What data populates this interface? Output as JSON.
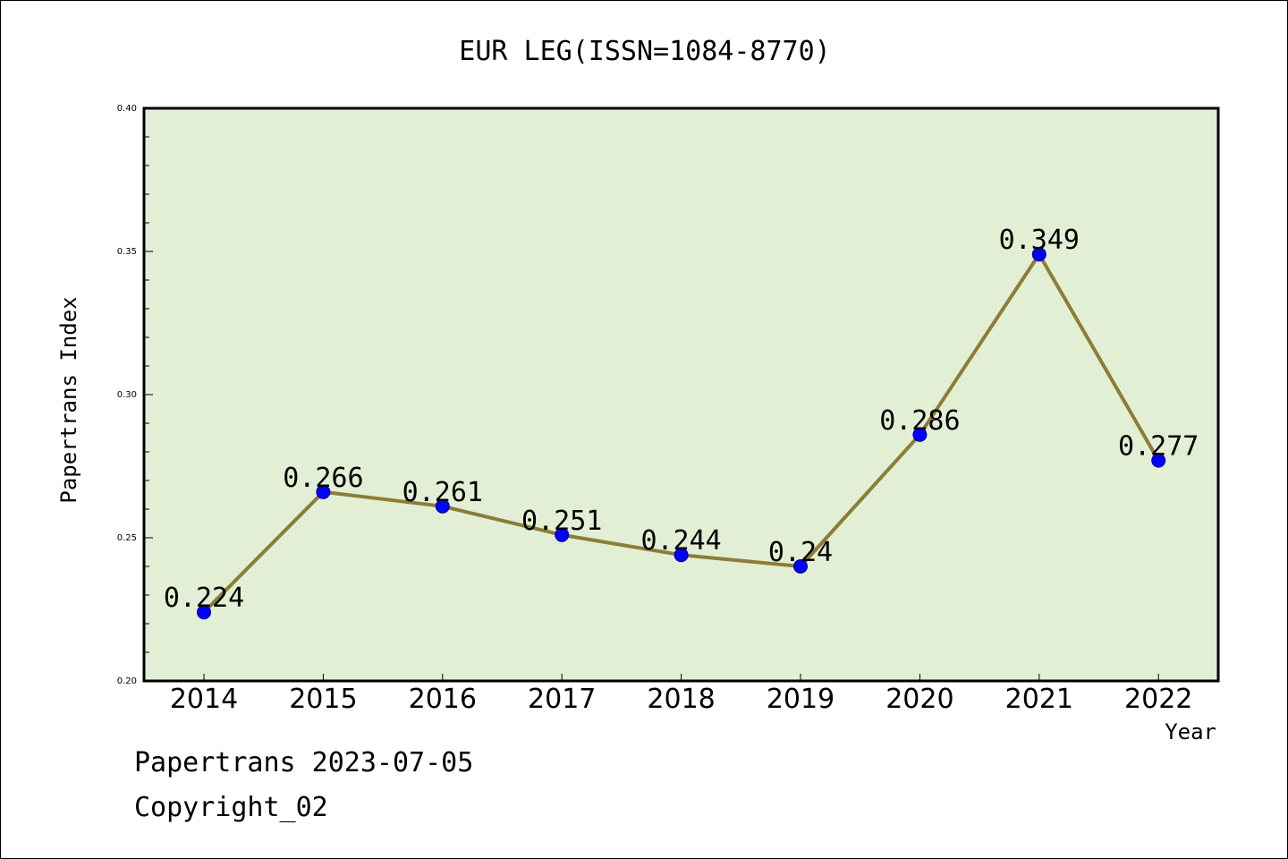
{
  "chart_data": {
    "type": "line",
    "title": "EUR LEG(ISSN=1084-8770)",
    "xlabel": "Year",
    "ylabel": "Papertrans Index",
    "x": [
      "2014",
      "2015",
      "2016",
      "2017",
      "2018",
      "2019",
      "2020",
      "2021",
      "2022"
    ],
    "values": [
      0.224,
      0.266,
      0.261,
      0.251,
      0.244,
      0.24,
      0.286,
      0.349,
      0.277
    ],
    "data_labels": [
      "0.224",
      "0.266",
      "0.261",
      "0.251",
      "0.244",
      "0.24",
      "0.286",
      "0.349",
      "0.277"
    ],
    "ylim": [
      0.2,
      0.4
    ],
    "yticks": [
      "0.20",
      "0.25",
      "0.30",
      "0.35",
      "0.40"
    ],
    "grid": false,
    "colors": {
      "plot_background": "#e2efd5",
      "line": "#8b7d35",
      "marker": "#0000ff",
      "marker_edge": "#00008b"
    }
  },
  "footer": {
    "line1": "Papertrans 2023-07-05",
    "line2": "Copyright_02"
  }
}
